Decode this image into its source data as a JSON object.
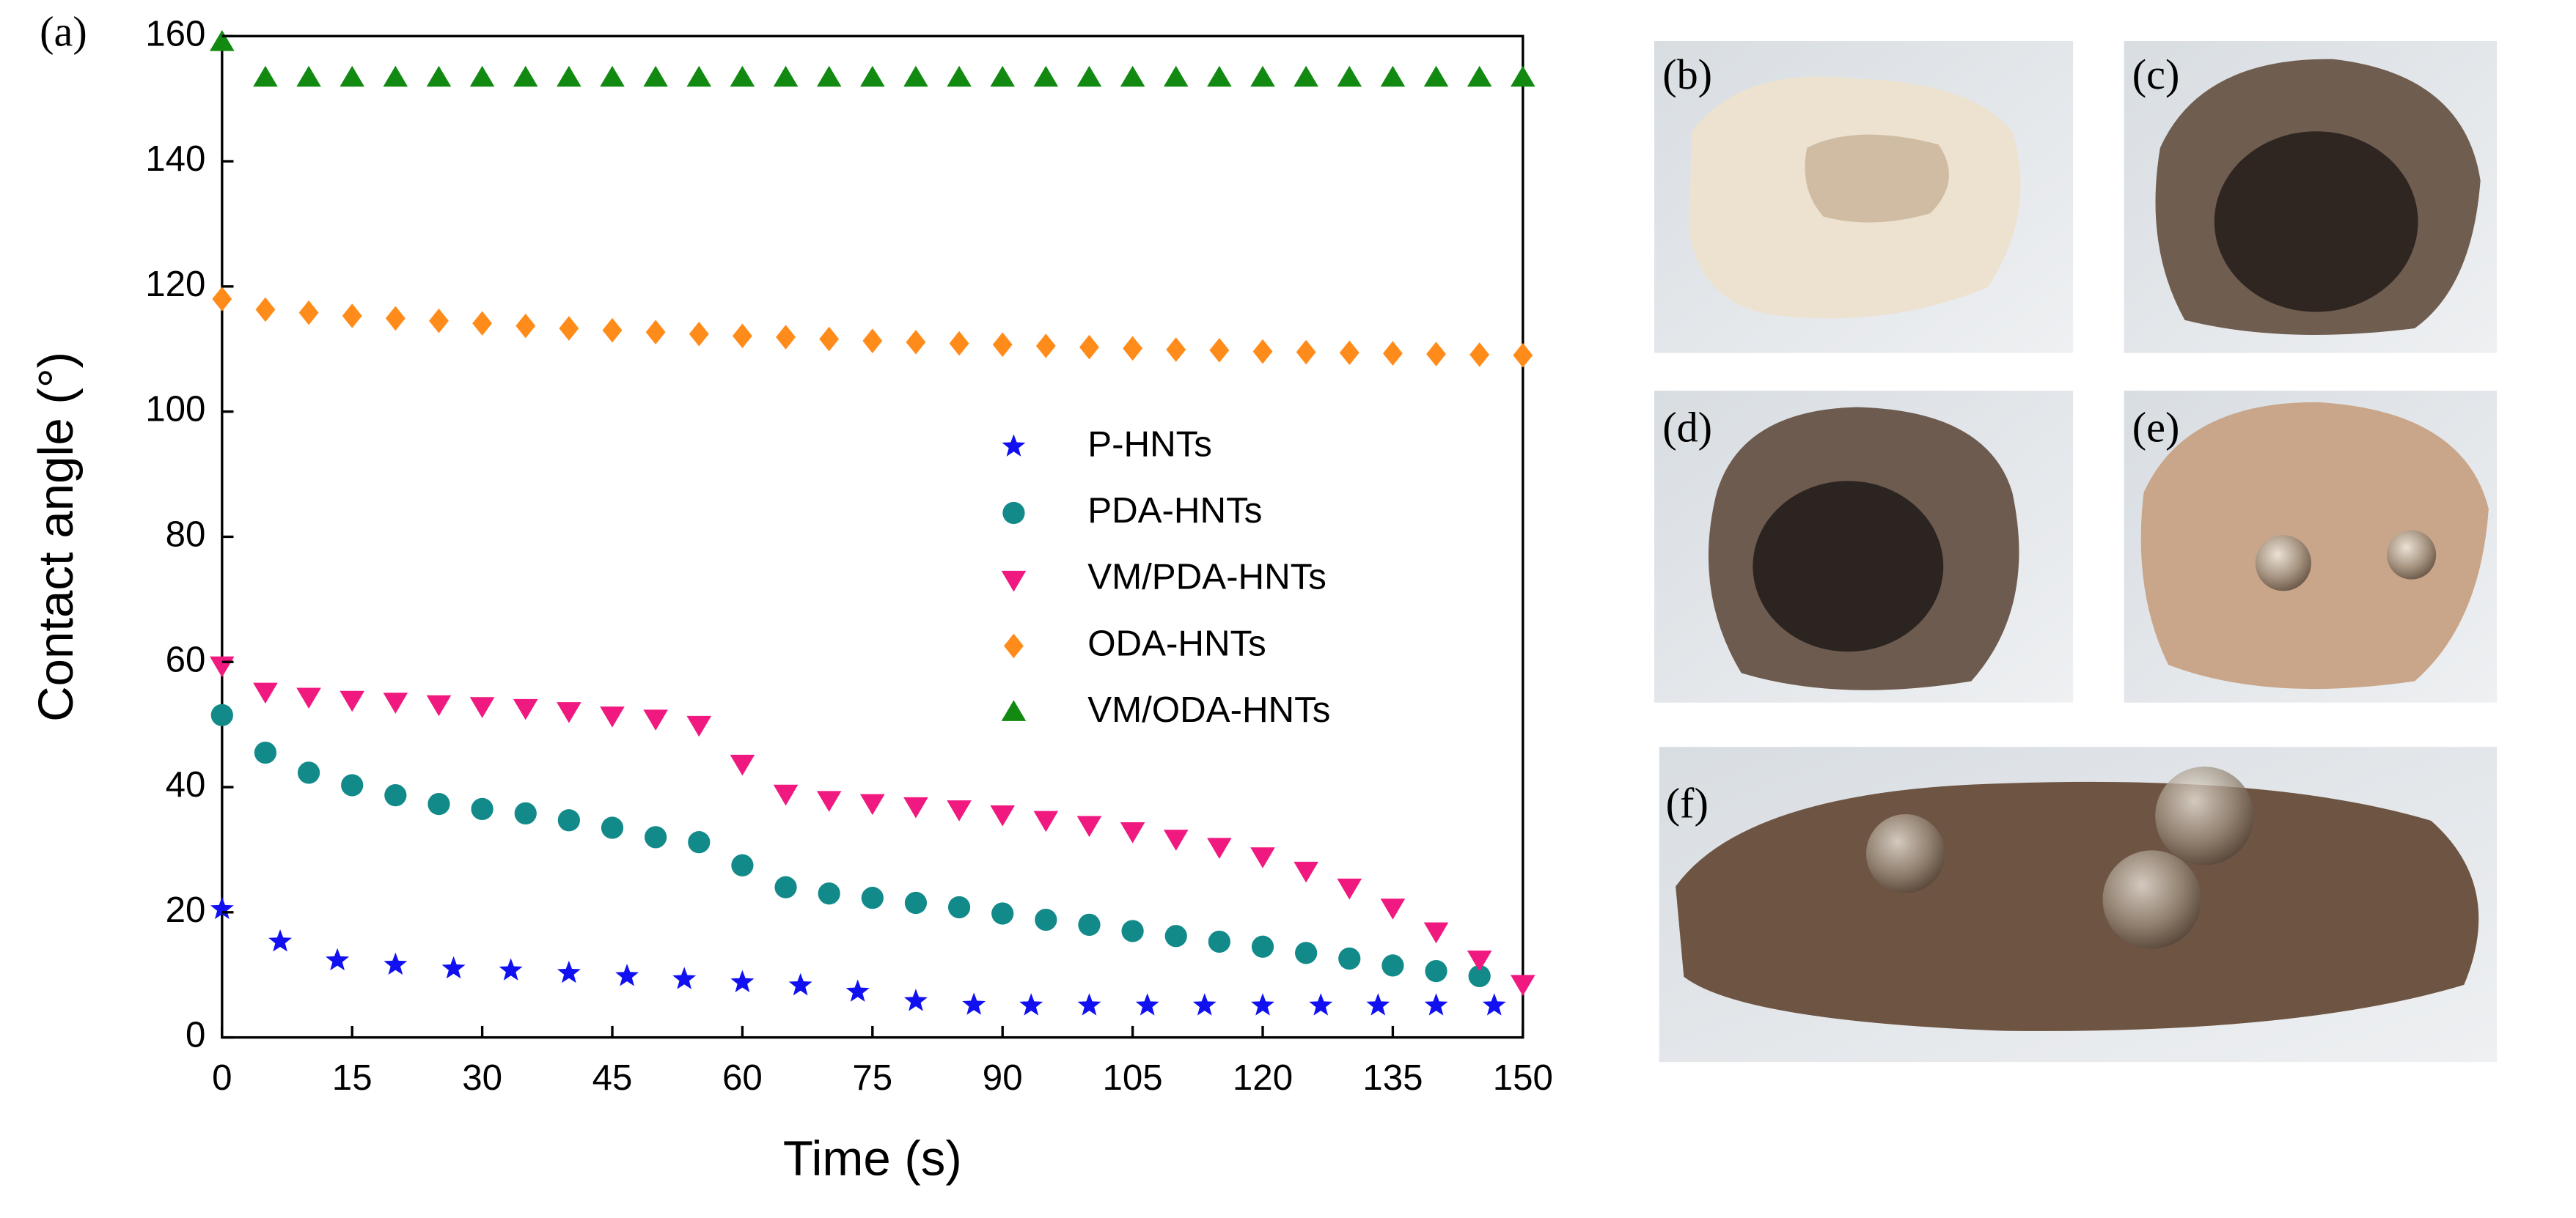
{
  "chart_data": {
    "type": "scatter",
    "panel_label": "(a)",
    "xlabel": "Time (s)",
    "ylabel": "Contact angle (°)",
    "xlim": [
      0,
      150
    ],
    "xticks": [
      0,
      15,
      30,
      45,
      60,
      75,
      90,
      105,
      120,
      135,
      150
    ],
    "ylim": [
      0,
      160
    ],
    "yticks": [
      0,
      20,
      40,
      60,
      80,
      100,
      120,
      140,
      160
    ],
    "legend": "center-right",
    "series": [
      {
        "name": "P-HNTs",
        "color": "#1010f0",
        "marker": "star",
        "x": [
          0,
          6.7,
          13.3,
          20,
          26.7,
          33.3,
          40,
          46.7,
          53.3,
          60,
          66.7,
          73.3,
          80,
          86.7,
          93.3,
          100,
          106.7,
          113.3,
          120,
          126.7,
          133.3,
          140,
          146.7
        ],
        "values": [
          20.5,
          15.3,
          12.3,
          11.6,
          11,
          10.7,
          10.3,
          9.8,
          9.3,
          8.8,
          8.3,
          7.3,
          5.8,
          5.2,
          5.1,
          5.1,
          5.1,
          5.1,
          5.1,
          5.1,
          5.1,
          5.1,
          5.1
        ]
      },
      {
        "name": "PDA-HNTs",
        "color": "#138a8a",
        "marker": "circle",
        "x": [
          0,
          5,
          10,
          15,
          20,
          25,
          30,
          35,
          40,
          45,
          50,
          55,
          60,
          65,
          70,
          75,
          80,
          85,
          90,
          95,
          100,
          105,
          110,
          115,
          120,
          125,
          130,
          135,
          140,
          145
        ],
        "values": [
          51.5,
          45.5,
          42.3,
          40.3,
          38.7,
          37.3,
          36.5,
          35.8,
          34.7,
          33.5,
          32,
          31.2,
          27.5,
          24,
          23,
          22.3,
          21.5,
          20.8,
          19.8,
          18.8,
          18,
          17,
          16.2,
          15.3,
          14.5,
          13.5,
          12.6,
          11.5,
          10.6,
          9.8
        ]
      },
      {
        "name": "VM/PDA-HNTs",
        "color": "#f0197f",
        "marker": "triangle-down",
        "x": [
          0,
          5,
          10,
          15,
          20,
          25,
          30,
          35,
          40,
          45,
          50,
          55,
          60,
          65,
          70,
          75,
          80,
          85,
          90,
          95,
          100,
          105,
          110,
          115,
          120,
          125,
          130,
          135,
          140,
          145,
          150
        ],
        "values": [
          59.5,
          55.3,
          54.5,
          54,
          53.7,
          53.3,
          53,
          52.7,
          52.2,
          51.5,
          51,
          50,
          43.8,
          39,
          38,
          37.5,
          37,
          36.5,
          35.7,
          34.8,
          34,
          33,
          31.8,
          30.5,
          29,
          26.7,
          24,
          20.8,
          17,
          12.5,
          8.6
        ]
      },
      {
        "name": "ODA-HNTs",
        "color": "#ff8c1a",
        "marker": "diamond",
        "x": [
          0,
          5,
          10,
          15,
          20,
          25,
          30,
          35,
          40,
          45,
          50,
          55,
          60,
          65,
          70,
          75,
          80,
          85,
          90,
          95,
          100,
          105,
          110,
          115,
          120,
          125,
          130,
          135,
          140,
          145,
          150
        ],
        "values": [
          118,
          116.3,
          115.8,
          115.3,
          114.9,
          114.5,
          114.1,
          113.7,
          113.3,
          113,
          112.7,
          112.4,
          112.1,
          111.9,
          111.6,
          111.3,
          111.1,
          110.9,
          110.7,
          110.5,
          110.3,
          110.1,
          109.9,
          109.8,
          109.6,
          109.5,
          109.4,
          109.3,
          109.2,
          109.1,
          109
        ]
      },
      {
        "name": "VM/ODA-HNTs",
        "color": "#128a12",
        "marker": "triangle-up",
        "x": [
          0,
          5,
          10,
          15,
          20,
          25,
          30,
          35,
          40,
          45,
          50,
          55,
          60,
          65,
          70,
          75,
          80,
          85,
          90,
          95,
          100,
          105,
          110,
          115,
          120,
          125,
          130,
          135,
          140,
          145,
          150
        ],
        "values": [
          159,
          153.3,
          153.3,
          153.3,
          153.3,
          153.3,
          153.3,
          153.3,
          153.3,
          153.3,
          153.3,
          153.3,
          153.3,
          153.3,
          153.3,
          153.3,
          153.3,
          153.3,
          153.3,
          153.3,
          153.3,
          153.3,
          153.3,
          153.3,
          153.3,
          153.3,
          153.3,
          153.3,
          153.3,
          153.3,
          153.3
        ]
      }
    ]
  },
  "photos": [
    "(b)",
    "(c)",
    "(d)",
    "(e)",
    "(f)"
  ]
}
